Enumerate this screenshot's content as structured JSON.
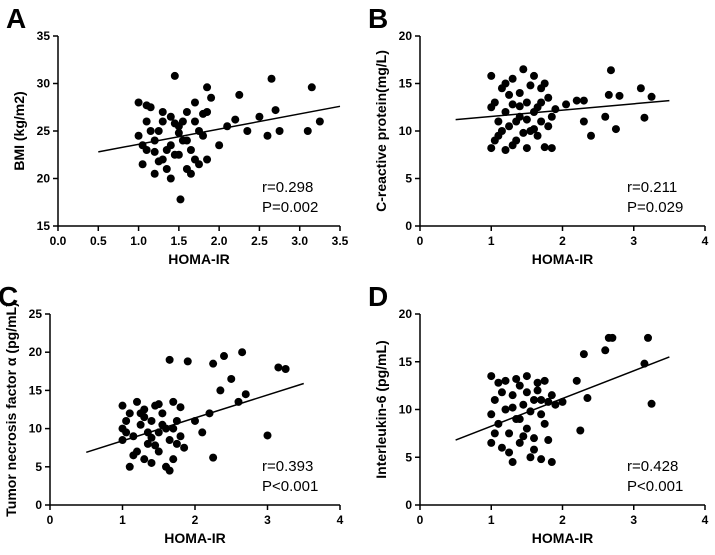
{
  "chart_data": [
    {
      "type": "scatter",
      "panel_label": "A",
      "x_label": "HOMA-IR",
      "y_label": "BMI (kg/m2)",
      "annotations": [
        "r=0.298",
        "P=0.002"
      ],
      "color": "#000000",
      "xlim": [
        0,
        3.5
      ],
      "ylim": [
        15,
        35
      ],
      "xticks": [
        {
          "value": 0,
          "label": "0.0"
        },
        0.5,
        {
          "value": 1,
          "label": "1.0"
        },
        1.5,
        {
          "value": 2,
          "label": "2.0"
        },
        2.5,
        {
          "value": 3,
          "label": "3.0"
        },
        3.5
      ],
      "yticks": [
        15,
        20,
        25,
        30,
        35
      ],
      "x": [
        1.0,
        1.05,
        1.1,
        1.1,
        1.15,
        1.2,
        1.2,
        1.25,
        1.3,
        1.3,
        1.35,
        1.4,
        1.4,
        1.45,
        1.5,
        1.5,
        1.55,
        1.6,
        1.6,
        1.65,
        1.7,
        1.7,
        1.75,
        1.8,
        1.85,
        1.85,
        1.9,
        1.0,
        1.1,
        1.2,
        1.3,
        1.4,
        1.52,
        1.6,
        1.7,
        1.8,
        1.05,
        1.25,
        1.45,
        1.65,
        1.85,
        1.15,
        1.35,
        1.55,
        1.75,
        1.5,
        1.45,
        2.0,
        2.1,
        2.2,
        2.25,
        2.35,
        2.5,
        2.6,
        2.65,
        2.7,
        2.75,
        3.1,
        3.15,
        3.25
      ],
      "y": [
        28,
        21.5,
        26,
        23,
        27.5,
        24,
        20.5,
        25,
        22,
        27,
        21,
        26.5,
        23.5,
        30.8,
        22.5,
        25.5,
        24,
        27,
        21,
        23,
        26,
        22,
        25,
        24.5,
        29.6,
        22,
        28.5,
        24.5,
        27.7,
        22.8,
        26,
        20,
        17.8,
        24,
        28,
        26.8,
        23.5,
        21.8,
        25.8,
        20.5,
        27,
        25,
        23,
        26,
        21.5,
        24.8,
        22.5,
        23.5,
        25.5,
        26.2,
        28.8,
        25,
        26.5,
        24.5,
        30.5,
        27.2,
        25,
        25,
        29.6,
        26
      ],
      "trendline": {
        "x": [
          0.5,
          3.5
        ],
        "y": [
          22.8,
          27.6
        ]
      }
    },
    {
      "type": "scatter",
      "panel_label": "B",
      "x_label": "HOMA-IR",
      "y_label": "C-reactive protein(mg/L)",
      "annotations": [
        "r=0.211",
        "P=0.029"
      ],
      "color": "#000000",
      "xlim": [
        0,
        4
      ],
      "ylim": [
        0,
        20
      ],
      "xticks": [
        0,
        1,
        2,
        3,
        4
      ],
      "yticks": [
        0,
        5,
        10,
        15,
        20
      ],
      "x": [
        1.0,
        1.0,
        1.05,
        1.1,
        1.1,
        1.15,
        1.2,
        1.2,
        1.25,
        1.3,
        1.3,
        1.35,
        1.4,
        1.4,
        1.45,
        1.5,
        1.5,
        1.55,
        1.6,
        1.6,
        1.65,
        1.7,
        1.7,
        1.75,
        1.8,
        1.8,
        1.0,
        1.15,
        1.25,
        1.35,
        1.45,
        1.55,
        1.65,
        1.75,
        1.85,
        1.05,
        1.3,
        1.5,
        1.6,
        1.7,
        1.2,
        1.4,
        1.9,
        1.85,
        2.05,
        2.2,
        2.3,
        2.3,
        2.4,
        2.6,
        2.65,
        2.68,
        2.75,
        2.8,
        3.1,
        3.15,
        3.25
      ],
      "y": [
        15.8,
        8.2,
        13,
        11,
        9.5,
        14.5,
        12,
        8,
        10.5,
        15.5,
        12.8,
        9,
        14,
        11.5,
        16.5,
        8.2,
        13,
        10,
        15.8,
        12,
        9.5,
        14.5,
        11,
        8.3,
        13.5,
        10.5,
        12.5,
        10,
        13.8,
        11,
        9.8,
        14.8,
        12.5,
        15,
        11.5,
        9,
        8.5,
        11.2,
        10.2,
        13,
        15,
        12.6,
        12.3,
        8.2,
        12.8,
        13.2,
        11,
        13.2,
        9.5,
        11.5,
        13.8,
        16.4,
        10.2,
        13.7,
        14.5,
        11.4,
        13.6
      ],
      "trendline": {
        "x": [
          0.5,
          3.5
        ],
        "y": [
          11.2,
          13.2
        ]
      }
    },
    {
      "type": "scatter",
      "panel_label": "C",
      "x_label": "HOMA-IR",
      "y_label": "Tumor necrosis factor α  (pg/mL)",
      "annotations": [
        "r=0.393",
        "P<0.001"
      ],
      "color": "#000000",
      "xlim": [
        0,
        4
      ],
      "ylim": [
        0,
        25
      ],
      "xticks": [
        0,
        1,
        2,
        3,
        4
      ],
      "yticks": [
        0,
        5,
        10,
        15,
        20,
        25
      ],
      "x": [
        1.0,
        1.0,
        1.05,
        1.1,
        1.1,
        1.15,
        1.2,
        1.2,
        1.25,
        1.3,
        1.3,
        1.35,
        1.4,
        1.4,
        1.45,
        1.5,
        1.5,
        1.55,
        1.6,
        1.6,
        1.65,
        1.65,
        1.7,
        1.7,
        1.75,
        1.8,
        1.8,
        1.85,
        1.0,
        1.15,
        1.25,
        1.35,
        1.45,
        1.55,
        1.65,
        1.75,
        1.05,
        1.3,
        1.5,
        1.7,
        1.4,
        1.9,
        2.0,
        2.1,
        2.2,
        2.25,
        2.25,
        2.35,
        2.4,
        2.5,
        2.6,
        2.65,
        2.7,
        3.0,
        3.15,
        3.25
      ],
      "y": [
        13,
        8.5,
        11,
        5,
        12,
        9,
        13.5,
        7,
        10.5,
        6,
        12.5,
        8,
        11,
        5.5,
        13,
        9.5,
        7,
        12,
        10,
        5,
        19,
        8.5,
        13.5,
        6,
        11,
        9,
        12.8,
        7.5,
        10,
        6.5,
        12,
        9.5,
        7.8,
        10.5,
        4.5,
        8,
        9.5,
        11.5,
        13.2,
        10,
        8.8,
        18.8,
        11,
        9.5,
        12,
        6.2,
        18.5,
        15,
        19.5,
        16.5,
        13.5,
        20,
        14.5,
        9.1,
        18,
        17.8
      ],
      "trendline": {
        "x": [
          0.5,
          3.5
        ],
        "y": [
          6.9,
          15.9
        ]
      }
    },
    {
      "type": "scatter",
      "panel_label": "D",
      "x_label": "HOMA-IR",
      "y_label": "Interleukin-6 (pg/mL)",
      "annotations": [
        "r=0.428",
        "P<0.001"
      ],
      "color": "#000000",
      "xlim": [
        0,
        4
      ],
      "ylim": [
        0,
        20
      ],
      "xticks": [
        0,
        1,
        2,
        3,
        4
      ],
      "yticks": [
        0,
        5,
        10,
        15,
        20
      ],
      "x": [
        1.0,
        1.0,
        1.05,
        1.1,
        1.1,
        1.15,
        1.2,
        1.2,
        1.25,
        1.3,
        1.3,
        1.35,
        1.4,
        1.4,
        1.45,
        1.5,
        1.5,
        1.55,
        1.6,
        1.6,
        1.65,
        1.7,
        1.7,
        1.75,
        1.8,
        1.8,
        1.85,
        1.0,
        1.15,
        1.25,
        1.35,
        1.45,
        1.55,
        1.65,
        1.75,
        1.05,
        1.3,
        1.5,
        1.6,
        1.4,
        1.7,
        1.85,
        1.9,
        2.0,
        2.2,
        2.25,
        2.3,
        2.35,
        2.6,
        2.65,
        2.7,
        3.15,
        3.2,
        3.25
      ],
      "y": [
        13.5,
        6.5,
        11,
        8.5,
        12.8,
        6,
        10,
        13,
        7.5,
        11.5,
        4.5,
        9,
        12.5,
        6.5,
        10.5,
        13.5,
        8,
        5,
        11,
        7,
        12,
        9.5,
        4.8,
        13,
        10.8,
        6.8,
        11.5,
        9.5,
        11.8,
        5.5,
        13.2,
        7.2,
        9.8,
        12.8,
        8.5,
        7.5,
        10.2,
        11.8,
        5.8,
        9,
        11,
        4.5,
        10.5,
        10.8,
        13,
        7.8,
        15.8,
        11.2,
        16.2,
        17.5,
        17.5,
        14.8,
        17.5,
        10.6
      ],
      "trendline": {
        "x": [
          0.5,
          3.5
        ],
        "y": [
          6.8,
          15.5
        ]
      }
    }
  ]
}
